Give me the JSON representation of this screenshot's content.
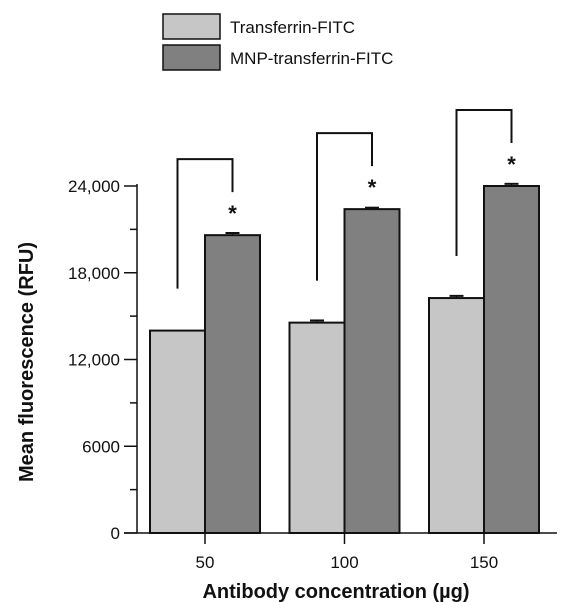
{
  "chart_data": {
    "type": "bar",
    "categories": [
      "50",
      "100",
      "150"
    ],
    "series": [
      {
        "name": "Transferrin-FITC",
        "values": [
          14000,
          14550,
          16250
        ],
        "errors": [
          0,
          150,
          150
        ],
        "color": "#c6c6c6"
      },
      {
        "name": "MNP-transferrin-FITC",
        "values": [
          20600,
          22400,
          24000
        ],
        "errors": [
          150,
          100,
          150
        ],
        "color": "#808080"
      }
    ],
    "significance_marker": "*",
    "xlabel": "Antibody concentration (µg)",
    "ylabel": "Mean fluorescence (RFU)",
    "ylim": [
      0,
      24000
    ],
    "yticks": [
      0,
      6000,
      12000,
      18000,
      24000
    ],
    "ytick_labels": [
      "0",
      "6000",
      "12,000",
      "18,000",
      "24,000"
    ],
    "legend_position": "top"
  }
}
